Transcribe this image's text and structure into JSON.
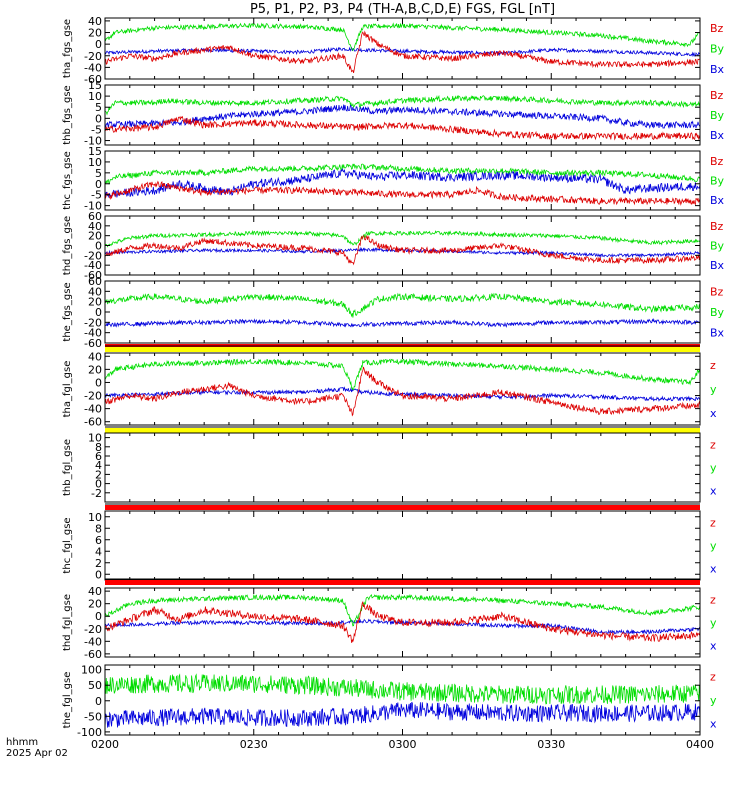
{
  "title": "P5, P1, P2, P3, P4 (TH-A,B,C,D,E) FGS, FGL [nT]",
  "footer": {
    "axis_label": "hhmm",
    "date": "2025 Apr 02"
  },
  "x_axis": {
    "ticks": [
      "0200",
      "0230",
      "0300",
      "0330",
      "0400"
    ],
    "range_minutes": [
      0,
      120
    ]
  },
  "colors": {
    "x": "#0000dd",
    "y": "#00dd00",
    "z": "#dd0000",
    "red_bar": "#ff0000",
    "yellow_bar": "#ffff00",
    "axis": "#000000"
  },
  "chart_data": [
    {
      "type": "line",
      "ylabel": "tha_fgs_gse",
      "yticks": [
        "40",
        "20",
        "0",
        "-20",
        "-40",
        "-60"
      ],
      "ylim": [
        -60,
        45
      ],
      "legend": [
        "Bz",
        "By",
        "Bx"
      ],
      "status_bar": "",
      "series": [
        {
          "name": "Bx",
          "x": [
            0,
            10,
            20,
            30,
            40,
            48,
            52,
            60,
            70,
            80,
            90,
            100,
            110,
            120
          ],
          "values": [
            -15,
            -12,
            -10,
            -12,
            -14,
            -8,
            -10,
            -12,
            -14,
            -16,
            -10,
            -12,
            -15,
            -18
          ],
          "noise": 3
        },
        {
          "name": "By",
          "x": [
            0,
            2,
            10,
            20,
            30,
            40,
            48,
            50,
            52,
            60,
            70,
            80,
            90,
            100,
            110,
            118,
            120
          ],
          "values": [
            5,
            20,
            28,
            30,
            32,
            30,
            25,
            -10,
            30,
            32,
            28,
            25,
            20,
            15,
            5,
            0,
            20
          ],
          "noise": 4
        },
        {
          "name": "Bz",
          "x": [
            0,
            5,
            10,
            15,
            20,
            25,
            30,
            35,
            40,
            48,
            50,
            52,
            55,
            60,
            70,
            80,
            90,
            100,
            110,
            120
          ],
          "values": [
            -30,
            -20,
            -25,
            -15,
            -10,
            -5,
            -20,
            -25,
            -30,
            -20,
            -50,
            20,
            0,
            -20,
            -25,
            -15,
            -30,
            -35,
            -35,
            -30
          ],
          "noise": 5
        }
      ]
    },
    {
      "type": "line",
      "ylabel": "thb_fgs_gse",
      "yticks": [
        "15",
        "10",
        "5",
        "0",
        "-5",
        "-10"
      ],
      "ylim": [
        -12,
        15
      ],
      "legend": [
        "Bz",
        "By",
        "Bx"
      ],
      "status_bar": "",
      "series": [
        {
          "name": "Bx",
          "x": [
            0,
            15,
            20,
            30,
            40,
            48,
            55,
            60,
            70,
            80,
            90,
            100,
            105,
            110,
            120
          ],
          "values": [
            -3,
            -2,
            0,
            2,
            3,
            5,
            3,
            4,
            3,
            2,
            1,
            0,
            -2,
            -3,
            -3
          ],
          "noise": 1.5
        },
        {
          "name": "By",
          "x": [
            0,
            2,
            10,
            12,
            20,
            30,
            40,
            48,
            50,
            60,
            70,
            80,
            90,
            100,
            110,
            120
          ],
          "values": [
            2,
            7,
            7,
            8,
            7,
            7,
            8,
            9,
            6,
            8,
            9,
            9,
            8,
            7,
            7,
            6
          ],
          "noise": 1.2
        },
        {
          "name": "Bz",
          "x": [
            0,
            10,
            15,
            20,
            30,
            40,
            50,
            60,
            70,
            75,
            80,
            90,
            100,
            110,
            120
          ],
          "values": [
            -5,
            -4,
            0,
            -3,
            -2,
            -3,
            -4,
            -3,
            -5,
            -6,
            -7,
            -8,
            -8,
            -8,
            -8
          ],
          "noise": 1.5
        }
      ]
    },
    {
      "type": "line",
      "ylabel": "thc_fgs_gse",
      "yticks": [
        "15",
        "10",
        "5",
        "0",
        "-5",
        "-10"
      ],
      "ylim": [
        -12,
        15
      ],
      "legend": [
        "Bz",
        "By",
        "Bx"
      ],
      "status_bar": "",
      "series": [
        {
          "name": "Bx",
          "x": [
            0,
            10,
            15,
            20,
            25,
            30,
            40,
            48,
            55,
            60,
            70,
            80,
            90,
            100,
            105,
            110,
            120
          ],
          "values": [
            -5,
            -3,
            0,
            -2,
            -4,
            0,
            2,
            5,
            3,
            4,
            3,
            4,
            3,
            2,
            -3,
            -2,
            -1
          ],
          "noise": 2
        },
        {
          "name": "By",
          "x": [
            0,
            2,
            10,
            20,
            30,
            40,
            50,
            60,
            70,
            80,
            90,
            100,
            110,
            120
          ],
          "values": [
            0,
            3,
            5,
            5,
            7,
            7,
            8,
            7,
            6,
            6,
            5,
            5,
            4,
            2
          ],
          "noise": 1.3
        },
        {
          "name": "Bz",
          "x": [
            0,
            5,
            10,
            15,
            20,
            30,
            40,
            50,
            60,
            70,
            75,
            80,
            90,
            100,
            110,
            120
          ],
          "values": [
            -6,
            -3,
            0,
            -2,
            -4,
            -3,
            -3,
            -4,
            -5,
            -5,
            -3,
            -6,
            -7,
            -8,
            -8,
            -8
          ],
          "noise": 1.5
        }
      ]
    },
    {
      "type": "line",
      "ylabel": "thd_fgs_gse",
      "yticks": [
        "60",
        "40",
        "20",
        "0",
        "-20",
        "-40",
        "-60"
      ],
      "ylim": [
        -60,
        60
      ],
      "legend": [
        "Bz",
        "By",
        "Bx"
      ],
      "status_bar": "",
      "series": [
        {
          "name": "Bx",
          "x": [
            0,
            10,
            20,
            30,
            40,
            48,
            52,
            60,
            70,
            80,
            90,
            100,
            110,
            120
          ],
          "values": [
            -15,
            -12,
            -10,
            -10,
            -12,
            -10,
            -8,
            -10,
            -12,
            -15,
            -15,
            -20,
            -20,
            -15
          ],
          "noise": 3
        },
        {
          "name": "By",
          "x": [
            0,
            5,
            10,
            20,
            30,
            40,
            48,
            50,
            53,
            60,
            70,
            80,
            90,
            100,
            110,
            120
          ],
          "values": [
            0,
            15,
            20,
            22,
            25,
            25,
            20,
            0,
            25,
            25,
            25,
            22,
            20,
            15,
            5,
            10
          ],
          "noise": 4
        },
        {
          "name": "Bz",
          "x": [
            0,
            5,
            10,
            15,
            20,
            30,
            40,
            48,
            50,
            52,
            55,
            60,
            70,
            80,
            90,
            100,
            110,
            120
          ],
          "values": [
            -20,
            -5,
            0,
            -5,
            10,
            0,
            -5,
            -15,
            -40,
            20,
            0,
            -10,
            -10,
            0,
            -20,
            -30,
            -30,
            -25
          ],
          "noise": 6
        }
      ]
    },
    {
      "type": "line",
      "ylabel": "the_fgs_gse",
      "yticks": [
        "60",
        "40",
        "20",
        "0",
        "-20",
        "-40",
        "-60"
      ],
      "ylim": [
        -60,
        60
      ],
      "legend": [
        "Bz",
        "By",
        "Bx"
      ],
      "status_bar": "red",
      "series": [
        {
          "name": "Bx",
          "x": [
            0,
            10,
            20,
            30,
            40,
            50,
            60,
            70,
            80,
            90,
            100,
            110,
            120
          ],
          "values": [
            -25,
            -22,
            -20,
            -18,
            -20,
            -25,
            -22,
            -20,
            -25,
            -20,
            -20,
            -18,
            -20
          ],
          "noise": 4
        },
        {
          "name": "By",
          "x": [
            0,
            10,
            20,
            30,
            40,
            48,
            50,
            55,
            60,
            70,
            80,
            90,
            100,
            110,
            120
          ],
          "values": [
            20,
            30,
            20,
            30,
            25,
            15,
            -5,
            25,
            30,
            25,
            30,
            20,
            15,
            5,
            10
          ],
          "noise": 6
        }
      ]
    },
    {
      "type": "line",
      "ylabel": "tha_fgl_gse",
      "yticks": [
        "40",
        "20",
        "0",
        "-20",
        "-40",
        "-60"
      ],
      "ylim": [
        -65,
        45
      ],
      "legend": [
        "z",
        "y",
        "x"
      ],
      "status_bar": "yellow",
      "series": [
        {
          "name": "x",
          "x": [
            0,
            10,
            20,
            30,
            40,
            48,
            52,
            60,
            70,
            80,
            90,
            100,
            110,
            120
          ],
          "values": [
            -20,
            -18,
            -15,
            -15,
            -15,
            -10,
            -15,
            -18,
            -20,
            -22,
            -20,
            -22,
            -25,
            -25
          ],
          "noise": 3
        },
        {
          "name": "y",
          "x": [
            0,
            2,
            10,
            20,
            30,
            40,
            48,
            50,
            52,
            60,
            70,
            80,
            90,
            100,
            110,
            118,
            120
          ],
          "values": [
            5,
            20,
            28,
            30,
            32,
            30,
            25,
            -10,
            30,
            32,
            28,
            25,
            20,
            15,
            5,
            0,
            20
          ],
          "noise": 4
        },
        {
          "name": "z",
          "x": [
            0,
            5,
            10,
            15,
            20,
            25,
            30,
            35,
            40,
            48,
            50,
            52,
            55,
            60,
            70,
            80,
            90,
            100,
            110,
            120
          ],
          "values": [
            -30,
            -20,
            -25,
            -15,
            -10,
            -5,
            -20,
            -25,
            -30,
            -20,
            -50,
            20,
            0,
            -20,
            -25,
            -15,
            -30,
            -45,
            -40,
            -35
          ],
          "noise": 5
        }
      ]
    },
    {
      "type": "line",
      "ylabel": "thb_fgl_gse",
      "yticks": [
        "10",
        "8",
        "6",
        "4",
        "2",
        "0",
        "-2"
      ],
      "ylim": [
        -4,
        11
      ],
      "legend": [
        "z",
        "y",
        "x"
      ],
      "status_bar": "yellow",
      "series": []
    },
    {
      "type": "line",
      "ylabel": "thc_fgl_gse",
      "yticks": [
        "10",
        "8",
        "6",
        "4",
        "2",
        "0"
      ],
      "ylim": [
        -1,
        11
      ],
      "legend": [
        "z",
        "y",
        "x"
      ],
      "status_bar": "red",
      "series": []
    },
    {
      "type": "line",
      "ylabel": "thd_fgl_gse",
      "yticks": [
        "40",
        "20",
        "0",
        "-20",
        "-40",
        "-60"
      ],
      "ylim": [
        -65,
        45
      ],
      "legend": [
        "z",
        "y",
        "x"
      ],
      "status_bar": "red",
      "series": [
        {
          "name": "x",
          "x": [
            0,
            10,
            20,
            30,
            40,
            48,
            52,
            60,
            70,
            80,
            90,
            100,
            110,
            120
          ],
          "values": [
            -15,
            -12,
            -10,
            -10,
            -12,
            -10,
            -8,
            -10,
            -12,
            -15,
            -15,
            -25,
            -25,
            -20
          ],
          "noise": 3
        },
        {
          "name": "y",
          "x": [
            0,
            5,
            10,
            20,
            30,
            40,
            48,
            50,
            53,
            60,
            70,
            80,
            90,
            100,
            110,
            120
          ],
          "values": [
            0,
            20,
            25,
            28,
            30,
            30,
            25,
            -15,
            30,
            30,
            28,
            25,
            20,
            15,
            5,
            15
          ],
          "noise": 4
        },
        {
          "name": "z",
          "x": [
            0,
            5,
            10,
            15,
            20,
            30,
            40,
            48,
            50,
            52,
            55,
            60,
            70,
            80,
            90,
            100,
            110,
            120
          ],
          "values": [
            -20,
            -5,
            10,
            -5,
            10,
            0,
            -5,
            -15,
            -40,
            20,
            0,
            -10,
            -10,
            0,
            -20,
            -30,
            -35,
            -30
          ],
          "noise": 6
        }
      ]
    },
    {
      "type": "line",
      "ylabel": "the_fgl_gse",
      "yticks": [
        "100",
        "50",
        "0",
        "-50",
        "-100"
      ],
      "ylim": [
        -110,
        115
      ],
      "legend": [
        "z",
        "y",
        "x"
      ],
      "status_bar": "",
      "series": [
        {
          "name": "x",
          "x": [
            0,
            10,
            20,
            30,
            40,
            50,
            60,
            70,
            80,
            90,
            100,
            110,
            120
          ],
          "values": [
            -60,
            -55,
            -50,
            -55,
            -55,
            -50,
            -30,
            -35,
            -40,
            -40,
            -40,
            -40,
            -35
          ],
          "noise": 28
        },
        {
          "name": "y",
          "x": [
            0,
            10,
            20,
            30,
            40,
            50,
            60,
            70,
            80,
            90,
            100,
            110,
            120
          ],
          "values": [
            50,
            55,
            55,
            55,
            50,
            40,
            30,
            25,
            20,
            20,
            20,
            20,
            25
          ],
          "noise": 30
        }
      ]
    }
  ]
}
